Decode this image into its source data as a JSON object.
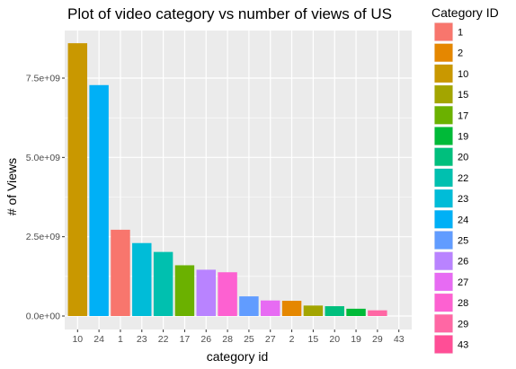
{
  "chart_data": {
    "type": "bar",
    "title": "Plot of video category vs number of views of US",
    "xlabel": "category id",
    "ylabel": "# of Views",
    "categories": [
      "10",
      "24",
      "1",
      "23",
      "22",
      "17",
      "26",
      "28",
      "25",
      "27",
      "2",
      "15",
      "20",
      "19",
      "29",
      "43"
    ],
    "values": [
      8600000000,
      7280000000,
      2720000000,
      2300000000,
      2020000000,
      1600000000,
      1460000000,
      1380000000,
      620000000,
      490000000,
      480000000,
      330000000,
      310000000,
      230000000,
      180000000,
      0
    ],
    "ylim": [
      0,
      9000000000
    ],
    "yticks": [
      0,
      2500000000,
      5000000000,
      7500000000
    ],
    "ytick_labels": [
      "0.0e+00",
      "2.5e+09",
      "5.0e+09",
      "7.5e+09"
    ],
    "grid": true,
    "legend": {
      "title": "Category ID",
      "placement": "right",
      "entries": [
        "1",
        "2",
        "10",
        "15",
        "17",
        "19",
        "20",
        "22",
        "23",
        "24",
        "25",
        "26",
        "27",
        "28",
        "29",
        "43"
      ],
      "colors": [
        "#F8766D",
        "#E58700",
        "#C99800",
        "#A3A500",
        "#6BB100",
        "#00BA38",
        "#00BF7D",
        "#00C0AF",
        "#00BCD8",
        "#00B0F6",
        "#619CFF",
        "#B983FF",
        "#E76BF3",
        "#FD61D1",
        "#FF67A4",
        "#FF4E96"
      ]
    },
    "panel_background": "#EBEBEB",
    "grid_color": "#FFFFFF"
  }
}
